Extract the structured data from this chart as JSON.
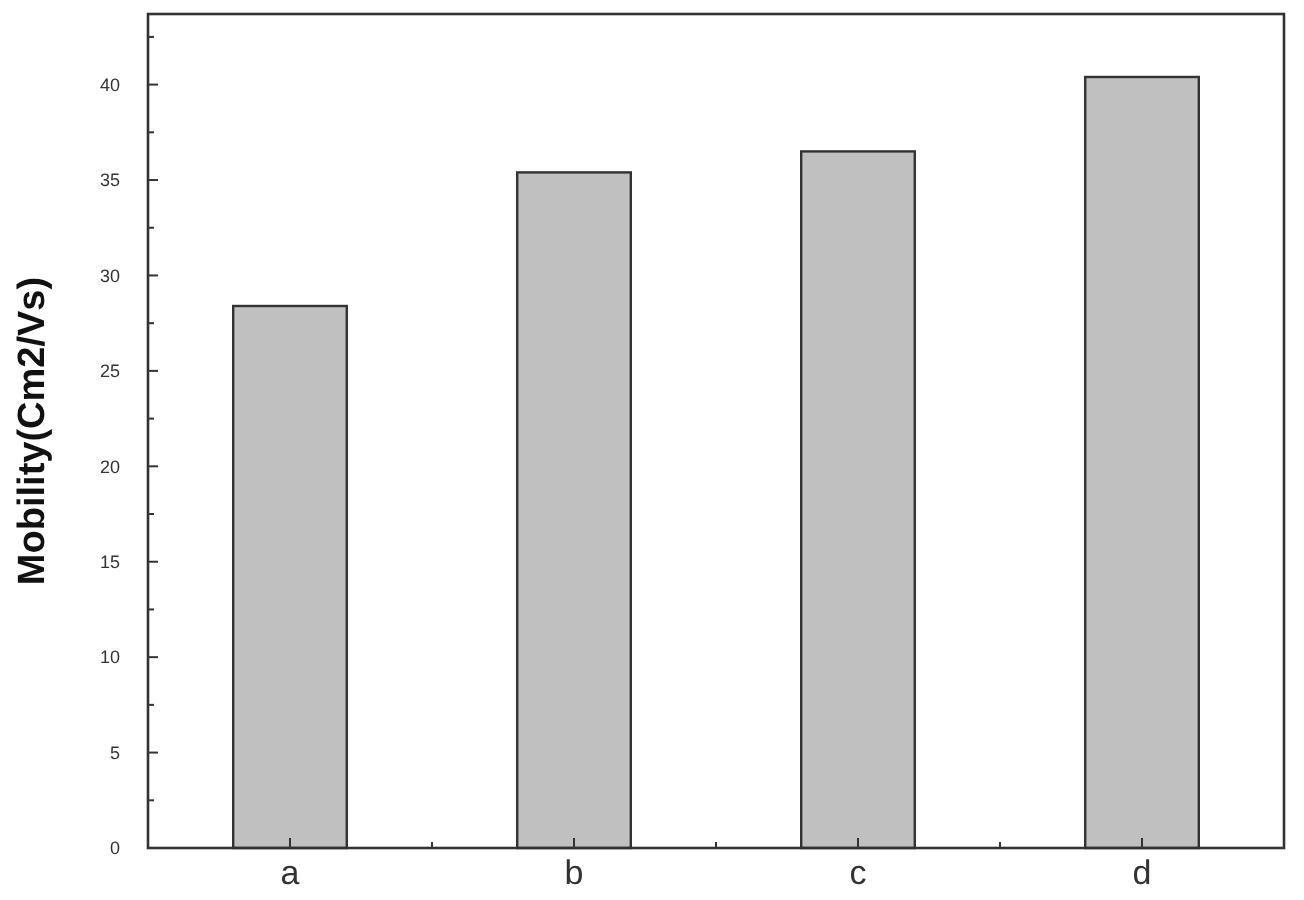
{
  "chart_data": {
    "type": "bar",
    "ylabel": "Mobility(Cm2/Vs)",
    "categories": [
      "a",
      "b",
      "c",
      "d"
    ],
    "values": [
      28.4,
      35.4,
      36.5,
      40.4
    ],
    "color": "#c0c0c0",
    "ylim": [
      0,
      43.7
    ],
    "yticks": [
      0,
      {
        "value": 2.5,
        "label": null
      },
      5,
      {
        "value": 7.5,
        "label": null
      },
      10,
      {
        "value": 12.5,
        "label": null
      },
      15,
      {
        "value": 17.5,
        "label": null
      },
      20,
      {
        "value": 22.5,
        "label": null
      },
      25,
      {
        "value": 27.5,
        "label": null
      },
      30,
      {
        "value": 32.5,
        "label": null
      },
      35,
      {
        "value": 37.5,
        "label": null
      },
      40,
      {
        "value": 42.5,
        "label": null
      }
    ],
    "grid": false
  }
}
